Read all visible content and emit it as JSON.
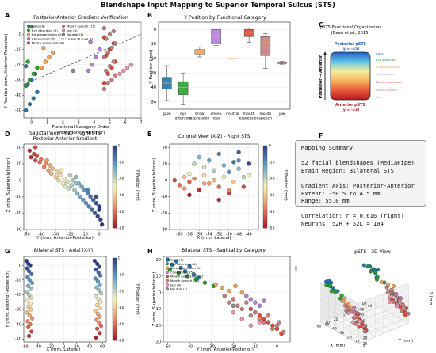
{
  "figure_title": "Blendshape Input Mapping to Superior Temporal Sulcus (STS)",
  "colors": {
    "gaze": "#1f77b4",
    "eye_attention": "#2ca02c",
    "brow_expression": "#f5a55a",
    "cheek_nose": "#b57fd6",
    "mouth_expression": "#e24a33",
    "mouth_speech": "#c58080",
    "jaw": "#f78fb3",
    "neutral": "#8a8a8a",
    "trend": "#555555"
  },
  "panels": {
    "A": {
      "letter": "A",
      "title": "Posterior-Anterior Gradient Verification",
      "xlabel_1": "Functional Category Order",
      "xlabel_2": "(Posterior -> Anterior)",
      "ylabel": "Y Position (mm, Anterior-Posterior)",
      "legend": [
        "Gaze (8)",
        "Eye attention (6)",
        "Brow expression (5)",
        "Cheek/nose (5)",
        "Mouth expression (8)",
        "Mouth speech (15)",
        "Jaw (4)",
        "Neutral (1)",
        "Linear fit (r=0.42)"
      ]
    },
    "B": {
      "letter": "B",
      "title": "Y Position by Functional Category",
      "ylabel": "Y Position (mm)"
    },
    "C": {
      "letter": "C",
      "title_1": "pSTS Functional Organization",
      "title_2": "(Deen et al., 2015)",
      "top_1": "Posterior pSTS",
      "top_2": "(y = -45)",
      "bottom_1": "Anterior pSTS",
      "bottom_2": "(y = -32)",
      "axis_label": "Posterior → Anterior",
      "labels": [
        "Gaze",
        "Eye attention",
        "Brow/Expression",
        "Cheek/Nose",
        "Mouth expression",
        "Mouth speech",
        "Jaw"
      ]
    },
    "D": {
      "letter": "D",
      "title_1": "Sagittal View (Y-Z) - Right STS",
      "title_2": "Posterior-Anterior Gradient",
      "xlabel": "Y (mm, Anterior-Posterior)",
      "ylabel": "Z (mm, Superior-Inferior)",
      "cbar": "Y Position (mm)"
    },
    "E": {
      "letter": "E",
      "title": "Coronal View (X-Z) - Right STS",
      "xlabel": "X (mm, Lateral)",
      "ylabel": "Z (mm, Superior-Inferior)",
      "cbar": "Y Position (mm)"
    },
    "F": {
      "letter": "F"
    },
    "G": {
      "letter": "G",
      "title": "Bilateral STS - Axial (X-Y)",
      "xlabel": "X (mm, Lateral)",
      "ylabel": "Y (mm, Anterior-Posterior)",
      "cbar": "Y Position (mm)"
    },
    "H": {
      "letter": "H",
      "title": "Bilateral STS - Sagittal by Category",
      "xlabel": "Y (mm, Anterior-Posterior)",
      "ylabel": "Z (mm, Superior-Inferior)",
      "legend": [
        "Gaze (8)",
        "Eye attention (6)",
        "Brow expression (5)",
        "Cheek/nose (5)",
        "Mouth expression (8)",
        "Mouth speech (15)",
        "Jaw (4)",
        "Neutral (1)"
      ]
    },
    "I": {
      "letter": "I",
      "title": "pSTS - 3D View",
      "xlabel": "X (mm)",
      "ylabel": "Y (mm)",
      "zlabel": "Z (mm)",
      "x_ticks": [
        "-60",
        "-40",
        "-20",
        "0",
        "20",
        "40",
        "60"
      ],
      "y_ticks": [
        "-50",
        "-40",
        "-30",
        "-20",
        "-10",
        "0"
      ],
      "z_ticks": [
        "-25",
        "-20",
        "-15",
        "-10",
        "-5",
        "0",
        "5",
        "10"
      ]
    }
  },
  "summary": {
    "heading": "Mapping Summary",
    "line1": "52 facial blendshapes (MediaPipe)",
    "line2": "Brain Region: Bilateral STS",
    "line3": "Gradient Axis: Posterior-Anterior",
    "line4": "Extent: -50.5 to 4.5 mm",
    "line5": "Range: 55.0 mm",
    "line6": "Correlation: r = 0.616 (right)",
    "line7": "Neurons: 52R + 52L = 104"
  },
  "chart_data": [
    {
      "panel": "A",
      "type": "scatter",
      "xlim": [
        -0.5,
        7
      ],
      "ylim": [
        -55,
        8
      ],
      "xticks": [
        0,
        1,
        2,
        3,
        4,
        5,
        6,
        7
      ],
      "yticks": [
        -50,
        -40,
        -30,
        -20,
        -10,
        0
      ],
      "series": [
        {
          "name": "Gaze (8)",
          "color": "#1f77b4",
          "x": [
            0,
            0,
            0,
            0,
            0,
            0,
            0,
            0
          ],
          "y": [
            -50,
            -46,
            -42,
            -38,
            -33,
            -30,
            -26,
            -21
          ]
        },
        {
          "name": "Eye attention (6)",
          "color": "#2ca02c",
          "x": [
            0,
            0,
            0,
            0,
            0,
            0
          ],
          "y": [
            -34,
            -30,
            -26,
            -22,
            -18,
            5
          ]
        },
        {
          "name": "Brow expression (5)",
          "color": "#f5a55a",
          "x": [
            1,
            1,
            1,
            1,
            1
          ],
          "y": [
            -22,
            -18,
            -15,
            -12,
            -9
          ]
        },
        {
          "name": "Cheek/nose (5)",
          "color": "#b57fd6",
          "x": [
            4,
            4,
            4,
            4,
            4
          ],
          "y": [
            -24,
            -20,
            -15,
            -10,
            -5
          ]
        },
        {
          "name": "Mouth expression (8)",
          "color": "#e24a33",
          "x": [
            5,
            5,
            5,
            5,
            5,
            5,
            5,
            5
          ],
          "y": [
            -32,
            -26,
            -22,
            -18,
            -14,
            -10,
            -6,
            -2
          ]
        },
        {
          "name": "Mouth speech (15)",
          "color": "#c58080",
          "x": [
            5,
            5,
            5,
            5,
            5,
            5,
            5,
            5,
            5,
            5,
            5,
            5,
            5,
            5,
            5
          ],
          "y": [
            -36,
            -32,
            -30,
            -27,
            -24,
            -21,
            -18,
            -15,
            -12,
            -9,
            -6,
            -3,
            0,
            2,
            4
          ]
        },
        {
          "name": "Jaw (4)",
          "color": "#f78fb3",
          "x": [
            6,
            6,
            6,
            6
          ],
          "y": [
            -26,
            -24,
            -22,
            -20
          ]
        },
        {
          "name": "Neutral (1)",
          "color": "#8a8a8a",
          "x": [
            3
          ],
          "y": [
            -24
          ]
        }
      ],
      "fit": {
        "name": "Linear fit (r=0.42)",
        "x": [
          -0.5,
          7
        ],
        "y": [
          -33,
          0
        ]
      }
    },
    {
      "panel": "B",
      "type": "box",
      "ylim": [
        -55,
        5
      ],
      "yticks": [
        -50,
        -40,
        -30,
        -20,
        -10,
        0
      ],
      "categories": [
        "gaze",
        "eye\nattention",
        "brow\nexpression",
        "cheek\nnose",
        "neutral",
        "mouth\nexpression",
        "mouth\nspeech",
        "jaw"
      ],
      "boxes": [
        {
          "min": -49,
          "q1": -41,
          "median": -37,
          "q3": -33,
          "max": -25,
          "color": "#1f77b4"
        },
        {
          "min": -52,
          "q1": -45,
          "median": -40,
          "q3": -36,
          "max": -30,
          "color": "#2ca02c"
        },
        {
          "min": -19,
          "q1": -17,
          "median": -16,
          "q3": -14,
          "max": -12,
          "color": "#f5a55a"
        },
        {
          "min": -11,
          "q1": -10,
          "median": -4,
          "q3": 0,
          "max": 1,
          "color": "#b57fd6"
        },
        {
          "min": -20,
          "q1": -20,
          "median": -20,
          "q3": -20,
          "max": -20,
          "color": "#f5a55a"
        },
        {
          "min": -9,
          "q1": -5,
          "median": -2,
          "q3": 0,
          "max": 1,
          "color": "#e24a33"
        },
        {
          "min": -27,
          "q1": -18,
          "median": -9,
          "q3": -5,
          "max": -3,
          "color": "#c58080"
        },
        {
          "min": -24,
          "q1": -23.5,
          "median": -23,
          "q3": -22.5,
          "max": -22,
          "color": "#f78fb3"
        }
      ]
    },
    {
      "panel": "D",
      "type": "scatter",
      "xlim": [
        -52,
        6
      ],
      "ylim": [
        -30,
        22
      ],
      "xticks": [
        -50,
        -40,
        -30,
        -20,
        -10,
        0
      ],
      "yticks": [
        -30,
        -20,
        -10,
        0,
        10,
        20
      ],
      "cbar_range": [
        -50,
        0
      ],
      "x": [
        -48,
        -47,
        -45,
        -44,
        -43,
        -41,
        -40,
        -38,
        -37,
        -35,
        -34,
        -33,
        -32,
        -30,
        -29,
        -28,
        -27,
        -25,
        -24,
        -23,
        -22,
        -21,
        -20,
        -19,
        -18,
        -17,
        -16,
        -15,
        -14,
        -13,
        -12,
        -11,
        -10,
        -9,
        -8,
        -7,
        -6,
        -5,
        -4,
        -3,
        -2,
        -1,
        0,
        1,
        2,
        -44,
        -36,
        -26,
        -16,
        -8,
        -2,
        0
      ],
      "y": [
        18,
        14,
        16,
        12,
        15,
        11,
        13,
        8,
        10,
        6,
        9,
        4,
        7,
        2,
        5,
        0,
        3,
        -2,
        1,
        -4,
        -1,
        -5,
        3,
        -3,
        0,
        -6,
        2,
        -8,
        -2,
        -10,
        -4,
        -12,
        -6,
        -14,
        -8,
        -16,
        -10,
        -18,
        -12,
        -20,
        -14,
        -22,
        -16,
        -24,
        -27,
        20,
        12,
        6,
        -2,
        -6,
        -10,
        -18
      ]
    },
    {
      "panel": "E",
      "type": "scatter",
      "xlim": [
        -62,
        -44
      ],
      "ylim": [
        -30,
        22
      ],
      "xticks": [
        -60,
        -58,
        -56,
        -54,
        -52,
        -50,
        -48,
        -46
      ],
      "yticks": [
        -30,
        -20,
        -10,
        0,
        10,
        20
      ],
      "cbar_range": [
        -50,
        0
      ],
      "x": [
        -61,
        -60,
        -59,
        -59,
        -58,
        -58,
        -57,
        -57,
        -56,
        -56,
        -55,
        -55,
        -54,
        -54,
        -53,
        -53,
        -52,
        -52,
        -51,
        -51,
        -50,
        -50,
        -49,
        -49,
        -48,
        -48,
        -47,
        -47,
        -46,
        -46,
        -58,
        -55,
        -52,
        -50,
        -48
      ],
      "y": [
        0,
        -3,
        2,
        -5,
        4,
        -1,
        10,
        1,
        14,
        -6,
        8,
        3,
        -2,
        12,
        6,
        0,
        16,
        -4,
        9,
        2,
        -8,
        5,
        11,
        -1,
        7,
        17,
        -4,
        2,
        10,
        3,
        -9,
        -2,
        -12,
        -6,
        12
      ],
      "c": [
        -45,
        -40,
        -30,
        -35,
        -25,
        -42,
        -20,
        -38,
        -15,
        -48,
        -22,
        -28,
        -36,
        -12,
        -18,
        -32,
        -8,
        -40,
        -14,
        -26,
        -46,
        -10,
        -6,
        -30,
        -16,
        -4,
        -44,
        -20,
        -2,
        -24,
        -50,
        -34,
        -48,
        -38,
        -10
      ]
    },
    {
      "panel": "G",
      "type": "scatter",
      "xlim": [
        -62,
        66
      ],
      "ylim": [
        -52,
        6
      ],
      "xticks": [
        -60,
        -40,
        -20,
        0,
        20,
        40,
        60
      ],
      "yticks": [
        -50,
        -40,
        -30,
        -20,
        -10,
        0
      ],
      "cbar_range": [
        -50,
        0
      ],
      "x": [
        -58,
        -55,
        -52,
        -57,
        -54,
        -50,
        -56,
        -53,
        -49,
        -55,
        -51,
        -58,
        -54,
        -50,
        -56,
        -52,
        -55,
        -51,
        -57,
        -53,
        -49,
        -56,
        -52,
        -55,
        -50,
        -54,
        48,
        52,
        55,
        50,
        54,
        57,
        49,
        53,
        56,
        51,
        55,
        58,
        50,
        54,
        57,
        52,
        56,
        49,
        53,
        56,
        51,
        55,
        58,
        52,
        56,
        50
      ],
      "y": [
        3,
        1,
        0,
        -2,
        -4,
        -6,
        -8,
        -10,
        -12,
        -14,
        -16,
        -18,
        -20,
        -22,
        -24,
        -26,
        -28,
        -30,
        -32,
        -34,
        -36,
        -38,
        -40,
        -42,
        -45,
        -48,
        3,
        1,
        -1,
        -3,
        -5,
        -7,
        -9,
        -11,
        -13,
        -15,
        -17,
        -19,
        -21,
        -23,
        -25,
        -27,
        -29,
        -31,
        -33,
        -35,
        -37,
        -39,
        -41,
        -43,
        -46,
        -49
      ]
    },
    {
      "panel": "H",
      "type": "scatter",
      "xlim": [
        -52,
        6
      ],
      "ylim": [
        -30,
        22
      ],
      "xticks": [
        -50,
        -40,
        -30,
        -20,
        -10,
        0
      ],
      "yticks": [
        -30,
        -20,
        -10,
        0,
        10,
        20
      ],
      "series": [
        {
          "name": "Gaze (8)",
          "color": "#1f77b4",
          "x": [
            -50,
            -48,
            -46,
            -44,
            -42,
            -40,
            -38,
            -36
          ],
          "y": [
            20,
            17,
            19,
            15,
            13,
            16,
            11,
            9
          ]
        },
        {
          "name": "Eye attention (6)",
          "color": "#2ca02c",
          "x": [
            -49,
            -45,
            -41,
            -37,
            -33,
            -29
          ],
          "y": [
            14,
            12,
            10,
            8,
            6,
            4
          ]
        },
        {
          "name": "Brow expression (5)",
          "color": "#f5a55a",
          "x": [
            -28,
            -25,
            -22,
            -19,
            -16
          ],
          "y": [
            5,
            3,
            1,
            4,
            0
          ]
        },
        {
          "name": "Cheek/nose (5)",
          "color": "#b57fd6",
          "x": [
            -14,
            -12,
            -10,
            -8,
            -6
          ],
          "y": [
            -2,
            -4,
            -6,
            -8,
            -5
          ]
        },
        {
          "name": "Mouth expression (8)",
          "color": "#e24a33",
          "x": [
            -12,
            -10,
            -8,
            -6,
            -4,
            -2,
            0,
            2
          ],
          "y": [
            -10,
            -12,
            -14,
            -16,
            -18,
            -20,
            -22,
            -25
          ]
        },
        {
          "name": "Mouth speech (15)",
          "color": "#c58080",
          "x": [
            -24,
            -22,
            -20,
            -18,
            -16,
            -14,
            -12,
            -10,
            -8,
            -6,
            -4,
            -2,
            0,
            1,
            3
          ],
          "y": [
            -2,
            -6,
            -4,
            -8,
            -10,
            -6,
            -14,
            -12,
            -16,
            -18,
            -14,
            -22,
            -20,
            -18,
            -24
          ]
        },
        {
          "name": "Jaw (4)",
          "color": "#f78fb3",
          "x": [
            -20,
            -16,
            -12,
            -8
          ],
          "y": [
            -12,
            -16,
            -20,
            -18
          ]
        },
        {
          "name": "Neutral (1)",
          "color": "#8a8a8a",
          "x": [
            -20
          ],
          "y": [
            -8
          ]
        }
      ]
    }
  ]
}
